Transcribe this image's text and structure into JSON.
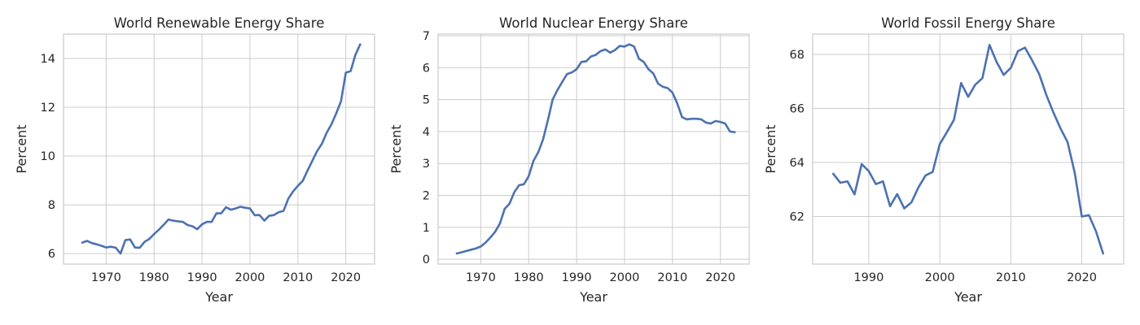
{
  "chart_data": [
    {
      "type": "line",
      "title": "World Renewable Energy Share",
      "xlabel": "Year",
      "ylabel": "Percent",
      "xlim": [
        1961.1,
        2026.0
      ],
      "ylim": [
        5.57,
        15.0
      ],
      "xticks": [
        1970,
        1980,
        1990,
        2000,
        2010,
        2020
      ],
      "yticks": [
        6,
        8,
        10,
        12,
        14
      ],
      "grid": true,
      "series": [
        {
          "color": "#4c72b0",
          "x": [
            1965,
            1966,
            1967,
            1968,
            1969,
            1970,
            1971,
            1972,
            1973,
            1974,
            1975,
            1976,
            1977,
            1978,
            1979,
            1980,
            1981,
            1982,
            1983,
            1984,
            1985,
            1986,
            1987,
            1988,
            1989,
            1990,
            1991,
            1992,
            1993,
            1994,
            1995,
            1996,
            1997,
            1998,
            1999,
            2000,
            2001,
            2002,
            2003,
            2004,
            2005,
            2006,
            2007,
            2008,
            2009,
            2010,
            2011,
            2012,
            2013,
            2014,
            2015,
            2016,
            2017,
            2018,
            2019,
            2020,
            2021,
            2022,
            2023
          ],
          "y": [
            6.45,
            6.52,
            6.43,
            6.38,
            6.32,
            6.25,
            6.28,
            6.24,
            6.0,
            6.55,
            6.58,
            6.25,
            6.24,
            6.48,
            6.6,
            6.8,
            6.98,
            7.18,
            7.4,
            7.35,
            7.32,
            7.3,
            7.17,
            7.12,
            7.0,
            7.2,
            7.3,
            7.3,
            7.65,
            7.65,
            7.9,
            7.8,
            7.85,
            7.92,
            7.88,
            7.85,
            7.57,
            7.58,
            7.35,
            7.55,
            7.58,
            7.7,
            7.75,
            8.25,
            8.55,
            8.78,
            8.98,
            9.4,
            9.8,
            10.2,
            10.5,
            10.95,
            11.3,
            11.75,
            12.25,
            13.42,
            13.48,
            14.15,
            14.58
          ]
        }
      ]
    },
    {
      "type": "line",
      "title": "World Nuclear Energy Share",
      "xlabel": "Year",
      "ylabel": "Percent",
      "xlim": [
        1961.1,
        2026.0
      ],
      "ylim": [
        -0.15,
        7.05
      ],
      "xticks": [
        1970,
        1980,
        1990,
        2000,
        2010,
        2020
      ],
      "yticks": [
        0,
        1,
        2,
        3,
        4,
        5,
        6,
        7
      ],
      "grid": true,
      "series": [
        {
          "color": "#4c72b0",
          "x": [
            1965,
            1966,
            1967,
            1968,
            1969,
            1970,
            1971,
            1972,
            1973,
            1974,
            1975,
            1976,
            1977,
            1978,
            1979,
            1980,
            1981,
            1982,
            1983,
            1984,
            1985,
            1986,
            1987,
            1988,
            1989,
            1990,
            1991,
            1992,
            1993,
            1994,
            1995,
            1996,
            1997,
            1998,
            1999,
            2000,
            2001,
            2002,
            2003,
            2004,
            2005,
            2006,
            2007,
            2008,
            2009,
            2010,
            2011,
            2012,
            2013,
            2014,
            2015,
            2016,
            2017,
            2018,
            2019,
            2020,
            2021,
            2022,
            2023
          ],
          "y": [
            0.18,
            0.22,
            0.26,
            0.3,
            0.34,
            0.4,
            0.52,
            0.68,
            0.86,
            1.12,
            1.58,
            1.74,
            2.1,
            2.32,
            2.35,
            2.6,
            3.08,
            3.35,
            3.75,
            4.35,
            5.0,
            5.3,
            5.55,
            5.8,
            5.85,
            5.95,
            6.18,
            6.2,
            6.35,
            6.4,
            6.52,
            6.57,
            6.47,
            6.55,
            6.68,
            6.66,
            6.73,
            6.66,
            6.28,
            6.18,
            5.95,
            5.82,
            5.5,
            5.4,
            5.36,
            5.22,
            4.88,
            4.45,
            4.38,
            4.4,
            4.4,
            4.38,
            4.28,
            4.25,
            4.33,
            4.3,
            4.25,
            4.0,
            3.98
          ]
        }
      ]
    },
    {
      "type": "line",
      "title": "World Fossil Energy Share",
      "xlabel": "Year",
      "ylabel": "Percent",
      "xlim": [
        1982.1,
        2025.9
      ],
      "ylim": [
        60.24,
        68.75
      ],
      "xticks": [
        1990,
        2000,
        2010,
        2020
      ],
      "yticks": [
        62,
        64,
        66,
        68
      ],
      "grid": true,
      "series": [
        {
          "color": "#4c72b0",
          "x": [
            1985,
            1986,
            1987,
            1988,
            1989,
            1990,
            1991,
            1992,
            1993,
            1994,
            1995,
            1996,
            1997,
            1998,
            1999,
            2000,
            2001,
            2002,
            2003,
            2004,
            2005,
            2006,
            2007,
            2008,
            2009,
            2010,
            2011,
            2012,
            2013,
            2014,
            2015,
            2016,
            2017,
            2018,
            2019,
            2020,
            2021,
            2022,
            2023
          ],
          "y": [
            63.58,
            63.25,
            63.3,
            62.82,
            63.94,
            63.68,
            63.2,
            63.3,
            62.38,
            62.83,
            62.3,
            62.52,
            63.08,
            63.52,
            63.65,
            64.68,
            65.12,
            65.58,
            66.94,
            66.43,
            66.88,
            67.12,
            68.35,
            67.72,
            67.24,
            67.5,
            68.12,
            68.25,
            67.78,
            67.27,
            66.5,
            65.85,
            65.26,
            64.75,
            63.62,
            62.0,
            62.05,
            61.45,
            60.63
          ]
        }
      ]
    }
  ]
}
